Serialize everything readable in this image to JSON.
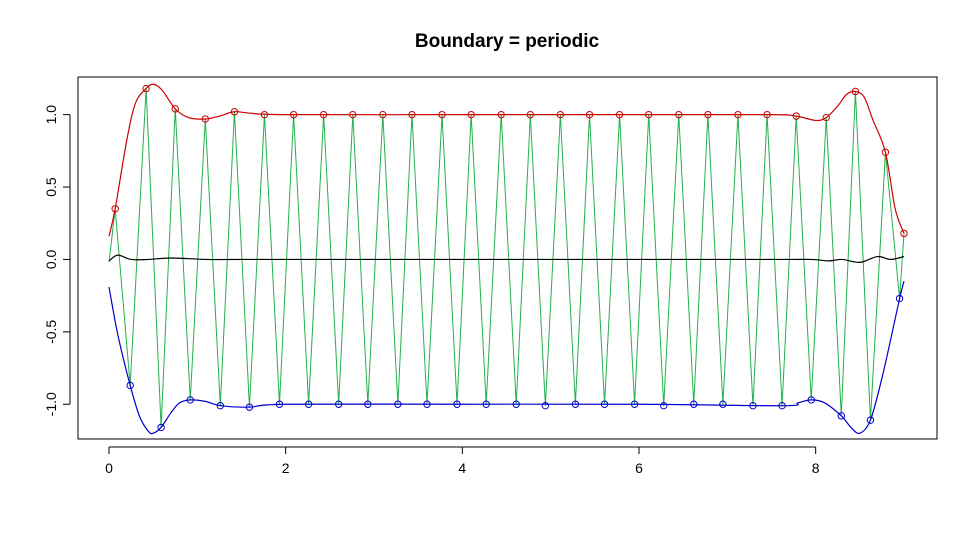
{
  "chart_data": {
    "type": "line",
    "title": "Boundary = periodic",
    "xlabel": "",
    "ylabel": "",
    "xlim": [
      0,
      9
    ],
    "ylim": [
      -1.24,
      1.26
    ],
    "x_ticks": [
      0,
      2,
      4,
      6,
      8
    ],
    "x_tick_labels": [
      "0",
      "2",
      "4",
      "6",
      "8"
    ],
    "y_ticks": [
      -1.0,
      -0.5,
      0.0,
      0.5,
      1.0
    ],
    "y_tick_labels": [
      "-1.0",
      "-0.5",
      "0.0",
      "0.5",
      "1.0"
    ],
    "grid": false,
    "legend": "none",
    "colors": {
      "signal": "#22b14c",
      "upper_envelope": "#cc0000",
      "lower_envelope": "#0000cc",
      "mean": "#000000",
      "maxima_points": "#cc0000",
      "minima_points": "#0000cc"
    },
    "maxima": {
      "x": [
        0.07,
        0.42,
        0.75,
        1.09,
        1.42,
        1.76,
        2.09,
        2.43,
        2.76,
        3.1,
        3.43,
        3.77,
        4.1,
        4.44,
        4.77,
        5.11,
        5.44,
        5.78,
        6.11,
        6.45,
        6.78,
        7.12,
        7.45,
        7.78,
        8.12,
        8.45,
        8.79,
        9.0
      ],
      "y": [
        0.35,
        1.18,
        1.04,
        0.97,
        1.02,
        1.0,
        1.0,
        1.0,
        1.0,
        1.0,
        1.0,
        1.0,
        1.0,
        1.0,
        1.0,
        1.0,
        1.0,
        1.0,
        1.0,
        1.0,
        1.0,
        1.0,
        1.0,
        0.99,
        0.98,
        1.16,
        0.74,
        0.18
      ]
    },
    "minima": {
      "x": [
        0.24,
        0.59,
        0.92,
        1.26,
        1.59,
        1.93,
        2.26,
        2.6,
        2.93,
        3.27,
        3.6,
        3.94,
        4.27,
        4.61,
        4.94,
        5.28,
        5.61,
        5.95,
        6.28,
        6.62,
        6.95,
        7.29,
        7.62,
        7.95,
        8.29,
        8.62,
        8.95
      ],
      "y": [
        -0.87,
        -1.16,
        -0.97,
        -1.01,
        -1.02,
        -1.0,
        -1.0,
        -1.0,
        -1.0,
        -1.0,
        -1.0,
        -1.0,
        -1.0,
        -1.0,
        -1.01,
        -1.0,
        -1.0,
        -1.0,
        -1.01,
        -1.0,
        -1.0,
        -1.01,
        -1.01,
        -0.97,
        -1.08,
        -1.11,
        -0.27
      ]
    },
    "upper_envelope": {
      "x": [
        0.0,
        0.07,
        0.2,
        0.3,
        0.42,
        0.5,
        0.6,
        0.75,
        0.9,
        1.09,
        1.25,
        1.42,
        1.6,
        2.0,
        4.0,
        6.0,
        7.5,
        7.78,
        8.0,
        8.12,
        8.25,
        8.35,
        8.45,
        8.55,
        8.65,
        8.79,
        8.9,
        9.0
      ],
      "y": [
        0.16,
        0.35,
        0.82,
        1.08,
        1.18,
        1.21,
        1.17,
        1.04,
        0.98,
        0.97,
        0.99,
        1.02,
        1.01,
        1.0,
        1.0,
        1.0,
        1.0,
        0.99,
        0.96,
        0.98,
        1.06,
        1.14,
        1.16,
        1.12,
        0.96,
        0.74,
        0.35,
        0.18
      ]
    },
    "lower_envelope": {
      "x": [
        0.0,
        0.1,
        0.24,
        0.35,
        0.45,
        0.5,
        0.59,
        0.7,
        0.8,
        0.92,
        1.09,
        1.26,
        1.59,
        2.0,
        4.0,
        6.0,
        7.62,
        7.8,
        7.95,
        8.1,
        8.29,
        8.4,
        8.5,
        8.62,
        8.75,
        8.85,
        8.95,
        9.0
      ],
      "y": [
        -0.19,
        -0.52,
        -0.87,
        -1.09,
        -1.19,
        -1.2,
        -1.16,
        -1.06,
        -0.99,
        -0.97,
        -0.98,
        -1.01,
        -1.02,
        -1.0,
        -1.0,
        -1.0,
        -1.01,
        -0.99,
        -0.97,
        -0.99,
        -1.08,
        -1.16,
        -1.2,
        -1.11,
        -0.82,
        -0.55,
        -0.27,
        -0.15
      ]
    },
    "mean": {
      "x": [
        0.0,
        0.1,
        0.25,
        0.45,
        0.7,
        1.1,
        1.5,
        2.0,
        4.0,
        6.0,
        7.6,
        7.95,
        8.15,
        8.3,
        8.5,
        8.7,
        8.85,
        9.0
      ],
      "y": [
        -0.01,
        0.03,
        0.0,
        0.0,
        0.01,
        0.0,
        0.0,
        0.0,
        0.0,
        0.0,
        0.0,
        0.0,
        -0.01,
        0.0,
        -0.02,
        0.02,
        0.0,
        0.02
      ]
    },
    "signal": {
      "description_of_series": "oscillation between maxima and minima",
      "start": [
        0.0,
        -0.02
      ],
      "end": [
        9.0,
        0.18
      ]
    }
  }
}
